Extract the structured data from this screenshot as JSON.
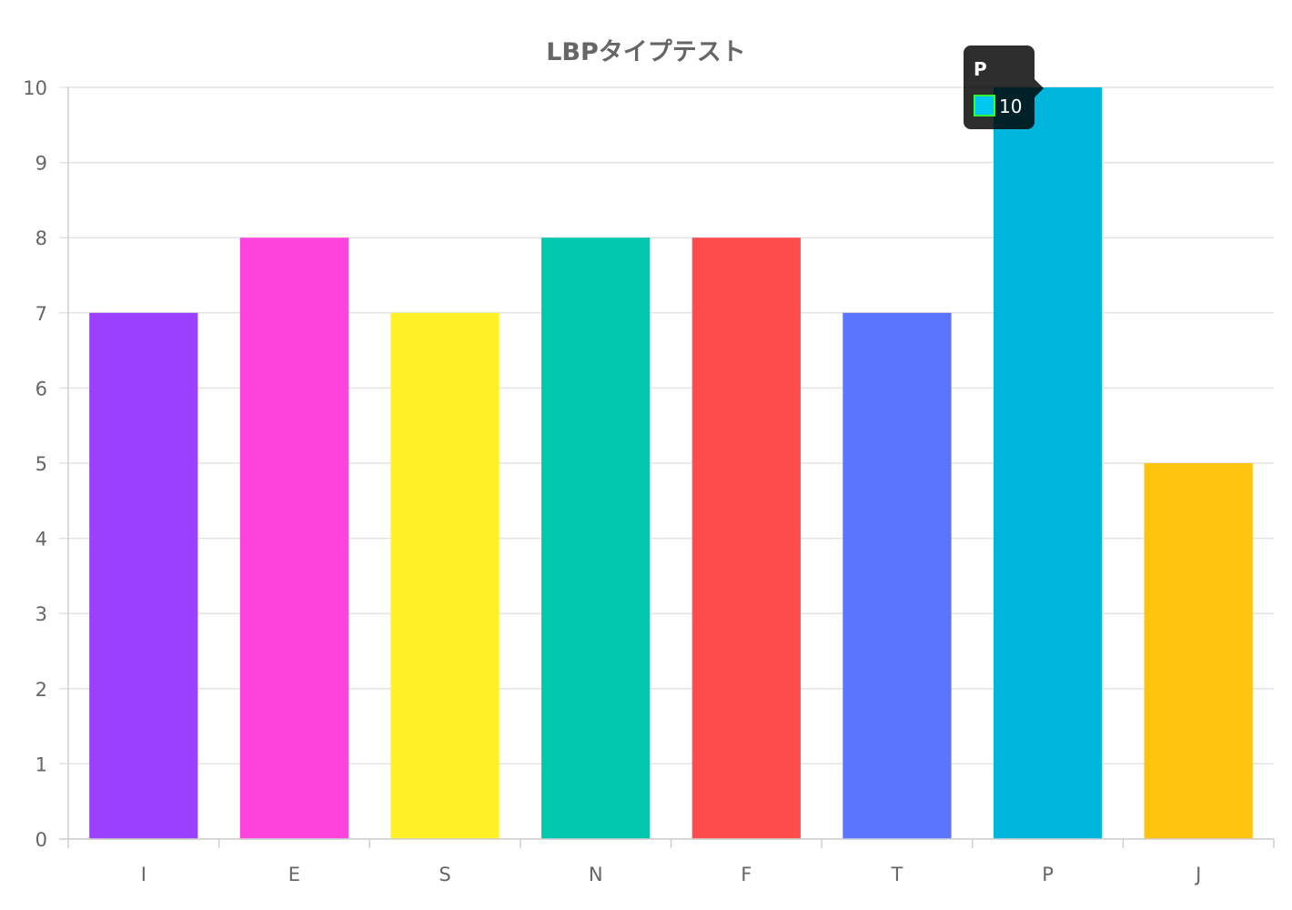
{
  "chart_data": {
    "type": "bar",
    "title": "LBPタイプテスト",
    "categories": [
      "I",
      "E",
      "S",
      "N",
      "F",
      "T",
      "P",
      "J"
    ],
    "values": [
      7,
      8,
      7,
      8,
      8,
      7,
      10,
      5
    ],
    "colors": [
      "#9b40ff",
      "#ff44de",
      "#fff027",
      "#00c9b0",
      "#ff4d4d",
      "#5b75ff",
      "#00b6dc",
      "#fcc30f"
    ],
    "ylim": [
      0,
      10
    ],
    "yticks": [
      0,
      1,
      2,
      3,
      4,
      5,
      6,
      7,
      8,
      9,
      10
    ],
    "grid": true,
    "legend": "none",
    "tooltip": {
      "category": "P",
      "value": "10",
      "swatch_color": "#00c8f0",
      "swatch_border": "#33ff33"
    }
  }
}
